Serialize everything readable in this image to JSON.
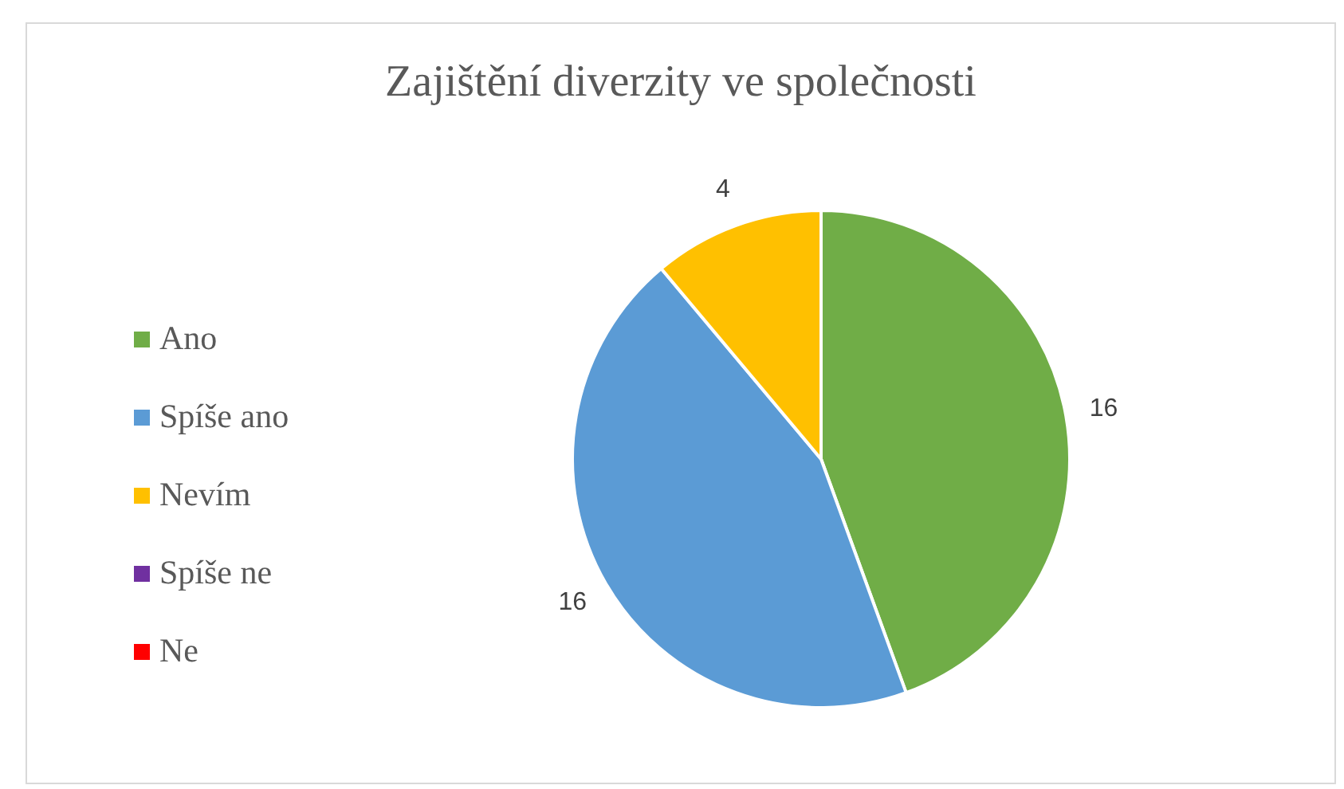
{
  "chart_data": {
    "type": "pie",
    "title": "Zajištění diverzity ve společnosti",
    "categories": [
      "Ano",
      "Spíše ano",
      "Nevím",
      "Spíše ne",
      "Ne"
    ],
    "values": [
      16,
      16,
      4,
      0,
      0
    ],
    "value_labels": [
      "16",
      "16",
      "4",
      null,
      null
    ],
    "colors": [
      "#70ad47",
      "#5b9bd5",
      "#ffc000",
      "#7030a0",
      "#ff0000"
    ],
    "legend": "left"
  }
}
